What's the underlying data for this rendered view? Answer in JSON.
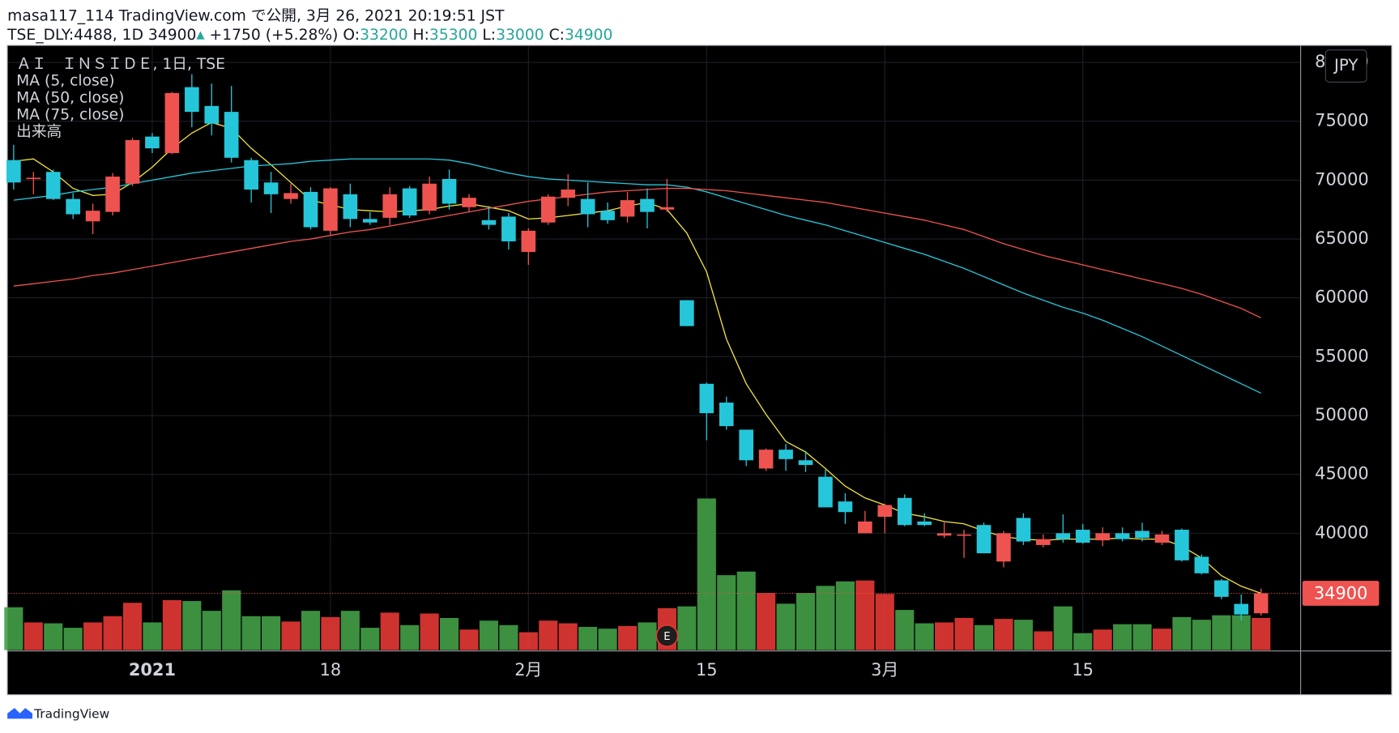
{
  "header": {
    "line1": "masa117_114 TradingView.com で公開, 3月 26, 2021 20:19:51 JST",
    "symbol": "TSE_DLY:4488, 1D",
    "arrow": "▲",
    "change": "+1750 (+5.28%)",
    "o": "O:",
    "h": "H:",
    "l": "L:",
    "c": "C:"
  },
  "footer": {
    "brand": "TradingView"
  },
  "chart_data": {
    "type": "candlestick",
    "title": "ＡＩ　ＩＮＳＩＤＥ, 1日, TSE",
    "currency": "JPY",
    "volume_name": "出来高",
    "categories": [
      null,
      null,
      null,
      null,
      null,
      null,
      null,
      "2021",
      null,
      null,
      null,
      null,
      null,
      null,
      null,
      null,
      "18",
      null,
      null,
      null,
      null,
      null,
      null,
      null,
      null,
      null,
      "2月",
      null,
      null,
      null,
      null,
      null,
      null,
      null,
      null,
      "15",
      null,
      null,
      null,
      null,
      null,
      null,
      null,
      null,
      "3月",
      null,
      null,
      null,
      null,
      null,
      null,
      null,
      null,
      null,
      "15",
      null,
      null,
      null,
      null,
      null,
      null,
      null,
      null,
      null
    ],
    "open": [
      71700,
      70100,
      70700,
      68400,
      66500,
      67300,
      69700,
      73700,
      72300,
      77900,
      76300,
      75800,
      71700,
      69800,
      68400,
      69000,
      65700,
      68800,
      66700,
      66800,
      69300,
      67400,
      70100,
      67700,
      66600,
      66900,
      63900,
      66400,
      68500,
      68400,
      67400,
      66900,
      68400,
      67500,
      59800,
      52700,
      51100,
      48800,
      45500,
      47100,
      46200,
      44800,
      42700,
      40000,
      41400,
      43000,
      41000,
      39800,
      39800,
      40700,
      37600,
      41300,
      39000,
      40000,
      40300,
      39400,
      40000,
      40200,
      39200,
      40300,
      38000,
      36000,
      34000,
      33200
    ],
    "high": [
      73000,
      70700,
      70900,
      68900,
      68000,
      70600,
      73600,
      74000,
      77500,
      79000,
      78200,
      78000,
      71900,
      70700,
      69700,
      69400,
      69400,
      69700,
      67300,
      69400,
      69500,
      70300,
      70900,
      68800,
      67800,
      67200,
      65900,
      68800,
      70500,
      69800,
      68100,
      69000,
      69300,
      70100,
      59800,
      52800,
      51600,
      48800,
      47200,
      47600,
      47000,
      45400,
      43400,
      41900,
      42500,
      43300,
      41700,
      41000,
      40300,
      40900,
      40200,
      41700,
      39900,
      41600,
      40800,
      40500,
      40500,
      40900,
      40200,
      40400,
      38200,
      36100,
      34800,
      35300
    ],
    "low": [
      69200,
      68800,
      68300,
      66700,
      65400,
      67000,
      69500,
      72300,
      72200,
      74500,
      73800,
      71500,
      68100,
      67200,
      68000,
      65800,
      65300,
      66000,
      66200,
      66200,
      66800,
      67100,
      67500,
      67300,
      65800,
      64100,
      62800,
      66200,
      67800,
      66000,
      66300,
      66400,
      65900,
      67300,
      57600,
      47900,
      48800,
      45700,
      45300,
      45300,
      45200,
      42200,
      40800,
      40000,
      40000,
      40600,
      40600,
      39600,
      37900,
      38300,
      37100,
      39000,
      38800,
      39200,
      39100,
      38900,
      39300,
      39300,
      39000,
      37600,
      36500,
      34400,
      32600,
      33000
    ],
    "close": [
      69800,
      70200,
      68400,
      67100,
      67400,
      70300,
      73400,
      72700,
      77400,
      75800,
      74800,
      71900,
      69200,
      68800,
      68900,
      66000,
      69300,
      66700,
      66400,
      68800,
      67000,
      69700,
      68000,
      68500,
      66200,
      64800,
      65700,
      68600,
      69200,
      67100,
      66600,
      68300,
      67300,
      67700,
      57600,
      50200,
      49100,
      46200,
      47100,
      46300,
      45800,
      42200,
      41800,
      41000,
      42400,
      40700,
      40700,
      40000,
      39900,
      38300,
      40000,
      39300,
      39500,
      39500,
      39200,
      40000,
      39500,
      39600,
      39900,
      37700,
      36600,
      34600,
      33100,
      34900
    ],
    "volume": [
      48,
      31,
      30,
      25,
      31,
      38,
      53,
      31,
      56,
      55,
      44,
      67,
      38,
      38,
      32,
      44,
      37,
      44,
      25,
      42,
      28,
      41,
      36,
      23,
      33,
      28,
      20,
      33,
      30,
      26,
      24,
      27,
      31,
      47,
      49,
      170,
      84,
      88,
      64,
      52,
      64,
      72,
      77,
      78,
      63,
      45,
      30,
      31,
      36,
      28,
      35,
      34,
      21,
      49,
      19,
      23,
      29,
      29,
      24,
      37,
      34,
      39,
      39,
      36
    ],
    "volume_lim": [
      0,
      200
    ],
    "up_color": "#ef5350",
    "down_color": "#26c6da",
    "volume_up_color": "#e53935",
    "volume_down_color": "#43a047",
    "ma": [
      {
        "name": "MA (5, close)",
        "color": "#f2e33a",
        "values": [
          71600,
          71800,
          70700,
          69300,
          68700,
          68800,
          69800,
          71100,
          72700,
          74000,
          74900,
          74400,
          72700,
          71300,
          69800,
          68300,
          67900,
          67500,
          67400,
          67300,
          67400,
          67500,
          67800,
          68000,
          67700,
          67400,
          66700,
          66800,
          67000,
          67200,
          67400,
          67800,
          68100,
          67500,
          65500,
          62200,
          56500,
          52700,
          50100,
          47800,
          46900,
          45500,
          44000,
          43000,
          42400,
          41700,
          41400,
          41000,
          40800,
          40200,
          39700,
          39500,
          39400,
          39500,
          39500,
          39500,
          39600,
          39500,
          39500,
          38900,
          37900,
          36400,
          35500,
          34900
        ]
      },
      {
        "name": "MA (50, close)",
        "color": "#26c6da",
        "values": [
          68300,
          68500,
          68700,
          69000,
          69200,
          69400,
          69700,
          70000,
          70300,
          70600,
          70800,
          71000,
          71200,
          71300,
          71400,
          71600,
          71700,
          71800,
          71800,
          71800,
          71800,
          71800,
          71700,
          71400,
          71000,
          70600,
          70300,
          70100,
          70000,
          69900,
          69800,
          69700,
          69600,
          69600,
          69400,
          69000,
          68500,
          68000,
          67500,
          67000,
          66600,
          66200,
          65700,
          65200,
          64700,
          64200,
          63700,
          63100,
          62500,
          61800,
          61100,
          60400,
          59800,
          59200,
          58700,
          58100,
          57400,
          56700,
          55900,
          55100,
          54300,
          53500,
          52700,
          51900
        ]
      },
      {
        "name": "MA (75, close)",
        "color": "#ef5350",
        "values": [
          61000,
          61200,
          61400,
          61600,
          61900,
          62100,
          62400,
          62700,
          63000,
          63300,
          63600,
          63900,
          64200,
          64500,
          64800,
          65000,
          65300,
          65600,
          65800,
          66100,
          66400,
          66700,
          67000,
          67300,
          67600,
          67900,
          68200,
          68400,
          68600,
          68800,
          69000,
          69100,
          69200,
          69300,
          69300,
          69200,
          69100,
          68900,
          68700,
          68500,
          68300,
          68100,
          67800,
          67500,
          67200,
          66900,
          66600,
          66200,
          65800,
          65200,
          64600,
          64100,
          63600,
          63200,
          62800,
          62400,
          62000,
          61600,
          61200,
          60800,
          60300,
          59700,
          59100,
          58300
        ]
      }
    ],
    "earnings": {
      "index": 33,
      "label": "E"
    },
    "ylim": [
      30000,
      81364
    ],
    "yticks": [
      40000,
      45000,
      50000,
      55000,
      60000,
      65000,
      70000,
      75000,
      80000
    ],
    "grid": true
  }
}
